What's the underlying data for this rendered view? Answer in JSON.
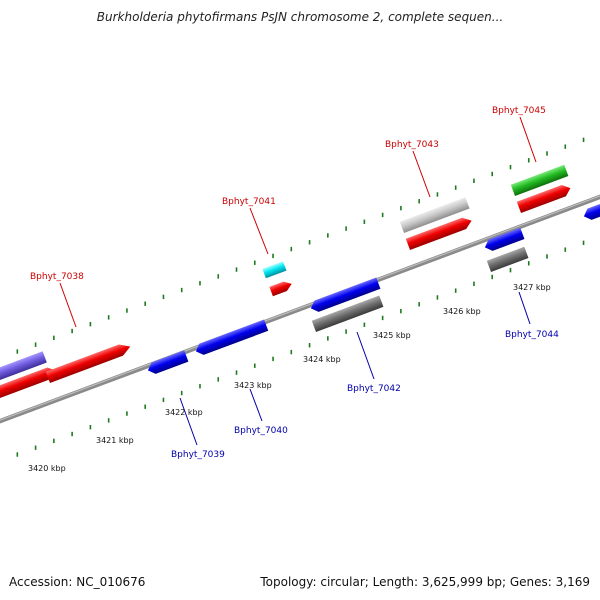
{
  "title": "Burkholderia phytofirmans PsJN chromosome 2, complete sequen...",
  "footer": {
    "accession": "Accession: NC_010676",
    "summary": "Topology: circular; Length: 3,625,999 bp; Genes: 3,169"
  },
  "colors": {
    "axis": "#8a8a8a",
    "ticks": "#1e7a1e",
    "forward_label": "#cc0000",
    "reverse_label": "#0000aa"
  },
  "scale_labels": [
    "3420 kbp",
    "3421 kbp",
    "3422 kbp",
    "3423 kbp",
    "3424 kbp",
    "3425 kbp",
    "3426 kbp",
    "3427 kbp"
  ],
  "gene_labels": [
    {
      "id": "g7038",
      "text": "Bphyt_7038",
      "strand": "forward"
    },
    {
      "id": "g7041",
      "text": "Bphyt_7041",
      "strand": "forward"
    },
    {
      "id": "g7043",
      "text": "Bphyt_7043",
      "strand": "forward"
    },
    {
      "id": "g7045",
      "text": "Bphyt_7045",
      "strand": "forward"
    },
    {
      "id": "g7039",
      "text": "Bphyt_7039",
      "strand": "reverse"
    },
    {
      "id": "g7040",
      "text": "Bphyt_7040",
      "strand": "reverse"
    },
    {
      "id": "g7042",
      "text": "Bphyt_7042",
      "strand": "reverse"
    },
    {
      "id": "g7044",
      "text": "Bphyt_7044",
      "strand": "reverse"
    }
  ]
}
